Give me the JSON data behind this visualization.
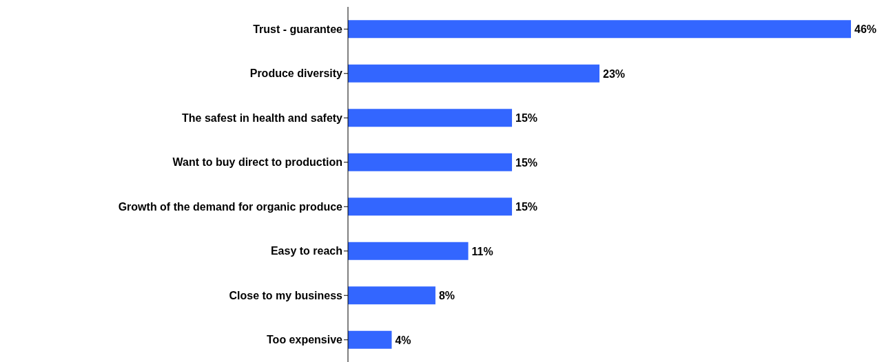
{
  "chart_data": {
    "type": "bar",
    "orientation": "horizontal",
    "categories": [
      "Trust - guarantee",
      "Produce diversity",
      "The safest in health and safety",
      "Want to buy direct to production",
      "Growth of the demand for organic produce",
      "Easy to reach",
      "Close to my business",
      "Too expensive"
    ],
    "values": [
      46,
      23,
      15,
      15,
      15,
      11,
      8,
      4
    ],
    "value_labels": [
      "46%",
      "23%",
      "15%",
      "15%",
      "15%",
      "11%",
      "8%",
      "4%"
    ],
    "color": "#3366ff"
  }
}
